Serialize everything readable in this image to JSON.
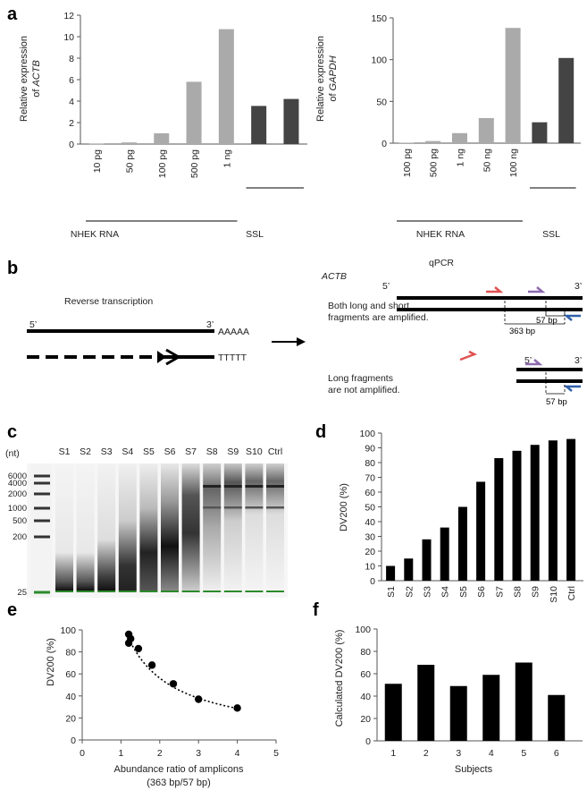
{
  "panels": {
    "a": "a",
    "b": "b",
    "c": "c",
    "d": "d",
    "e": "e",
    "f": "f"
  },
  "chart_data": [
    {
      "id": "a-left",
      "type": "bar",
      "ylabel_line1": "Relative expression",
      "ylabel_prefix": "of ",
      "ylabel_gene": "ACTB",
      "ylim": [
        0,
        12
      ],
      "yticks": [
        0,
        2,
        4,
        6,
        8,
        10,
        12
      ],
      "categories": [
        "10 pg",
        "50 pg",
        "100 pg",
        "500 pg",
        "1 ng",
        "",
        ""
      ],
      "values": [
        0.03,
        0.15,
        1.0,
        5.8,
        10.7,
        3.55,
        4.2
      ],
      "group_labels": [
        "NHEK RNA",
        "SSL"
      ],
      "colors": [
        "#aaaaaa",
        "#aaaaaa",
        "#aaaaaa",
        "#aaaaaa",
        "#aaaaaa",
        "#444444",
        "#444444"
      ]
    },
    {
      "id": "a-right",
      "type": "bar",
      "ylabel_line1": "Relative expression",
      "ylabel_prefix": "of ",
      "ylabel_gene": "GAPDH",
      "ylim": [
        0,
        150
      ],
      "yticks": [
        0,
        50,
        100,
        150
      ],
      "categories": [
        "100 pg",
        "500 pg",
        "1 ng",
        "50 ng",
        "100 ng",
        "",
        ""
      ],
      "values": [
        0.5,
        2.5,
        12,
        30,
        138,
        25,
        102
      ],
      "group_labels": [
        "NHEK RNA",
        "SSL"
      ],
      "colors": [
        "#aaaaaa",
        "#aaaaaa",
        "#aaaaaa",
        "#aaaaaa",
        "#aaaaaa",
        "#444444",
        "#444444"
      ]
    },
    {
      "id": "d",
      "type": "bar",
      "ylabel": "DV200 (%)",
      "ylim": [
        0,
        100
      ],
      "yticks": [
        0,
        10,
        20,
        30,
        40,
        50,
        60,
        70,
        80,
        90,
        100
      ],
      "categories": [
        "S1",
        "S2",
        "S3",
        "S4",
        "S5",
        "S6",
        "S7",
        "S8",
        "S9",
        "S10",
        "Ctrl"
      ],
      "values": [
        10,
        15,
        28,
        36,
        50,
        67,
        83,
        88,
        92,
        95,
        96
      ]
    },
    {
      "id": "e",
      "type": "scatter",
      "ylabel": "DV200 (%)",
      "xlabel_line1": "Abundance ratio of amplicons",
      "xlabel_line2": "(363 bp/57 bp)",
      "xlim": [
        0,
        5
      ],
      "ylim": [
        0,
        100
      ],
      "xticks": [
        0,
        1,
        2,
        3,
        4,
        5
      ],
      "yticks": [
        0,
        20,
        40,
        60,
        80,
        100
      ],
      "points": [
        [
          1.2,
          96
        ],
        [
          1.25,
          92
        ],
        [
          1.2,
          88
        ],
        [
          1.45,
          83
        ],
        [
          1.8,
          68
        ],
        [
          2.35,
          51
        ],
        [
          3.0,
          37
        ],
        [
          4.0,
          29
        ]
      ]
    },
    {
      "id": "f",
      "type": "bar",
      "ylabel": "Calculated DV200 (%)",
      "xlabel": "Subjects",
      "ylim": [
        0,
        100
      ],
      "yticks": [
        0,
        20,
        40,
        60,
        80,
        100
      ],
      "categories": [
        "1",
        "2",
        "3",
        "4",
        "5",
        "6"
      ],
      "values": [
        51,
        68,
        49,
        59,
        70,
        41
      ]
    }
  ],
  "panel_b": {
    "rt_title": "Reverse transcription",
    "five_prime": "5’",
    "three_prime": "3’",
    "polyA": "AAAAA",
    "polyT": "TTTTT",
    "qpcr_title": "qPCR",
    "gene": "ACTB",
    "text_both_1": "Both long and short",
    "text_both_2": "fragments are amplified.",
    "bp_long": "363 bp",
    "bp_short": "57 bp",
    "text_long_1": "Long fragments",
    "text_long_2": "are not amplified."
  },
  "panel_c": {
    "unit": "(nt)",
    "ladder": [
      "6000",
      "4000",
      "2000",
      "1000",
      "500",
      "200",
      "25"
    ],
    "lanes": [
      "S1",
      "S2",
      "S3",
      "S4",
      "S5",
      "S6",
      "S7",
      "S8",
      "S9",
      "S10",
      "Ctrl"
    ]
  }
}
